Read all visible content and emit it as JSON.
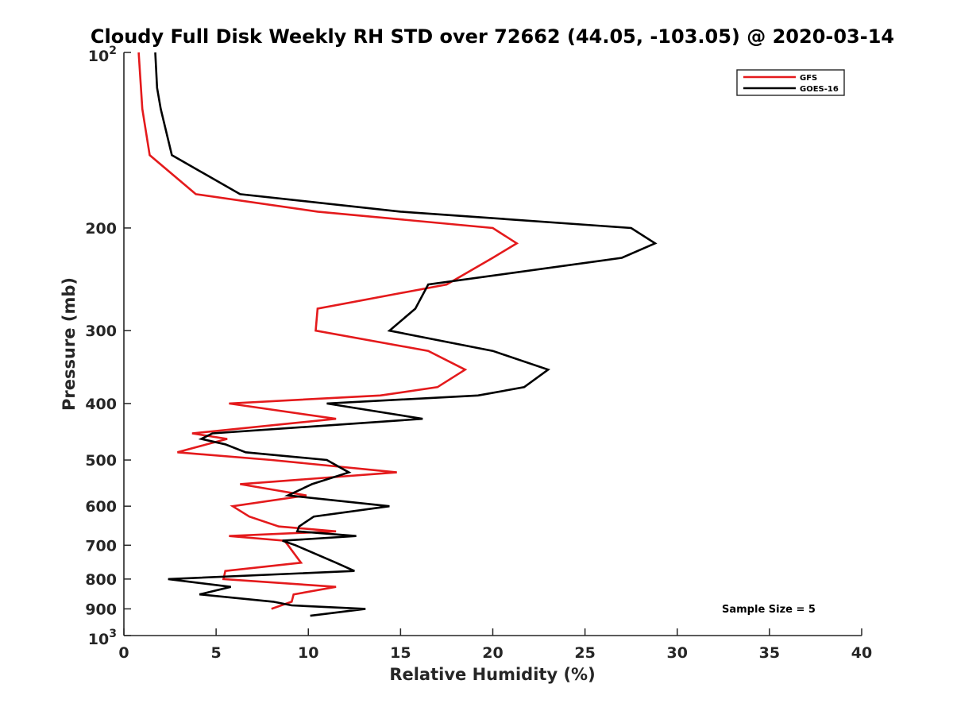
{
  "chart_data": {
    "type": "line",
    "title": "Cloudy Full Disk Weekly RH STD over 72662 (44.05, -103.05) @ 2020-03-14",
    "xlabel": "Relative Humidity (%)",
    "ylabel": "Pressure (mb)",
    "xlim": [
      0,
      40
    ],
    "ylim": [
      100,
      1000
    ],
    "yscale": "log",
    "y_reversed": true,
    "grid": false,
    "legend_position": "top-right",
    "x_ticks": [
      "0",
      "5",
      "10",
      "15",
      "20",
      "25",
      "30",
      "35",
      "40"
    ],
    "y_ticks": [
      {
        "value": 100,
        "base": "10",
        "exp": "2"
      },
      {
        "value": 200,
        "label": "200"
      },
      {
        "value": 300,
        "label": "300"
      },
      {
        "value": 400,
        "label": "400"
      },
      {
        "value": 500,
        "label": "500"
      },
      {
        "value": 600,
        "label": "600"
      },
      {
        "value": 700,
        "label": "700"
      },
      {
        "value": 800,
        "label": "800"
      },
      {
        "value": 900,
        "label": "900"
      },
      {
        "value": 1000,
        "base": "10",
        "exp": "3"
      }
    ],
    "annotation": "Sample Size = 5",
    "series": [
      {
        "name": "GFS",
        "color": "#e41a1c",
        "points": [
          [
            0.8,
            100
          ],
          [
            1.0,
            125
          ],
          [
            1.4,
            150
          ],
          [
            3.9,
            175
          ],
          [
            10.5,
            187.5
          ],
          [
            20.0,
            200
          ],
          [
            21.3,
            212.5
          ],
          [
            20.0,
            225
          ],
          [
            17.5,
            250
          ],
          [
            10.5,
            275
          ],
          [
            10.4,
            300
          ],
          [
            16.5,
            325
          ],
          [
            18.5,
            350
          ],
          [
            17.0,
            375
          ],
          [
            13.9,
            387.5
          ],
          [
            5.7,
            400
          ],
          [
            11.5,
            425
          ],
          [
            3.7,
            450
          ],
          [
            5.6,
            460
          ],
          [
            4.5,
            470
          ],
          [
            2.9,
            485
          ],
          [
            8.0,
            500
          ],
          [
            14.8,
            525
          ],
          [
            6.3,
            550
          ],
          [
            9.9,
            575
          ],
          [
            5.9,
            600
          ],
          [
            6.8,
            625
          ],
          [
            8.4,
            650
          ],
          [
            11.5,
            662.5
          ],
          [
            5.7,
            675
          ],
          [
            8.7,
            687.5
          ],
          [
            8.9,
            700
          ],
          [
            9.6,
            750
          ],
          [
            5.5,
            775
          ],
          [
            5.4,
            800
          ],
          [
            11.5,
            825
          ],
          [
            9.2,
            850
          ],
          [
            9.1,
            875
          ],
          [
            8.0,
            900
          ]
        ]
      },
      {
        "name": "GOES-16",
        "color": "#000000",
        "points": [
          [
            1.7,
            100
          ],
          [
            1.8,
            115
          ],
          [
            2.0,
            125
          ],
          [
            2.6,
            150
          ],
          [
            6.3,
            175
          ],
          [
            15.0,
            187.5
          ],
          [
            27.5,
            200
          ],
          [
            28.8,
            212.5
          ],
          [
            27.0,
            225
          ],
          [
            16.5,
            250
          ],
          [
            15.8,
            275
          ],
          [
            14.4,
            300
          ],
          [
            20.0,
            325
          ],
          [
            23.0,
            350
          ],
          [
            21.7,
            375
          ],
          [
            19.2,
            387.5
          ],
          [
            11.0,
            400
          ],
          [
            16.2,
            425
          ],
          [
            4.8,
            450
          ],
          [
            4.2,
            460
          ],
          [
            5.5,
            470
          ],
          [
            6.6,
            485
          ],
          [
            11.0,
            500
          ],
          [
            12.2,
            525
          ],
          [
            10.2,
            550
          ],
          [
            8.9,
            575
          ],
          [
            14.4,
            600
          ],
          [
            10.3,
            625
          ],
          [
            9.5,
            650
          ],
          [
            9.4,
            662.5
          ],
          [
            12.6,
            675
          ],
          [
            8.6,
            687.5
          ],
          [
            9.3,
            700
          ],
          [
            11.5,
            750
          ],
          [
            12.5,
            775
          ],
          [
            2.4,
            800
          ],
          [
            5.8,
            825
          ],
          [
            4.1,
            850
          ],
          [
            8.1,
            875
          ],
          [
            9.1,
            887.5
          ],
          [
            13.1,
            900
          ],
          [
            10.1,
            925
          ]
        ]
      }
    ]
  }
}
